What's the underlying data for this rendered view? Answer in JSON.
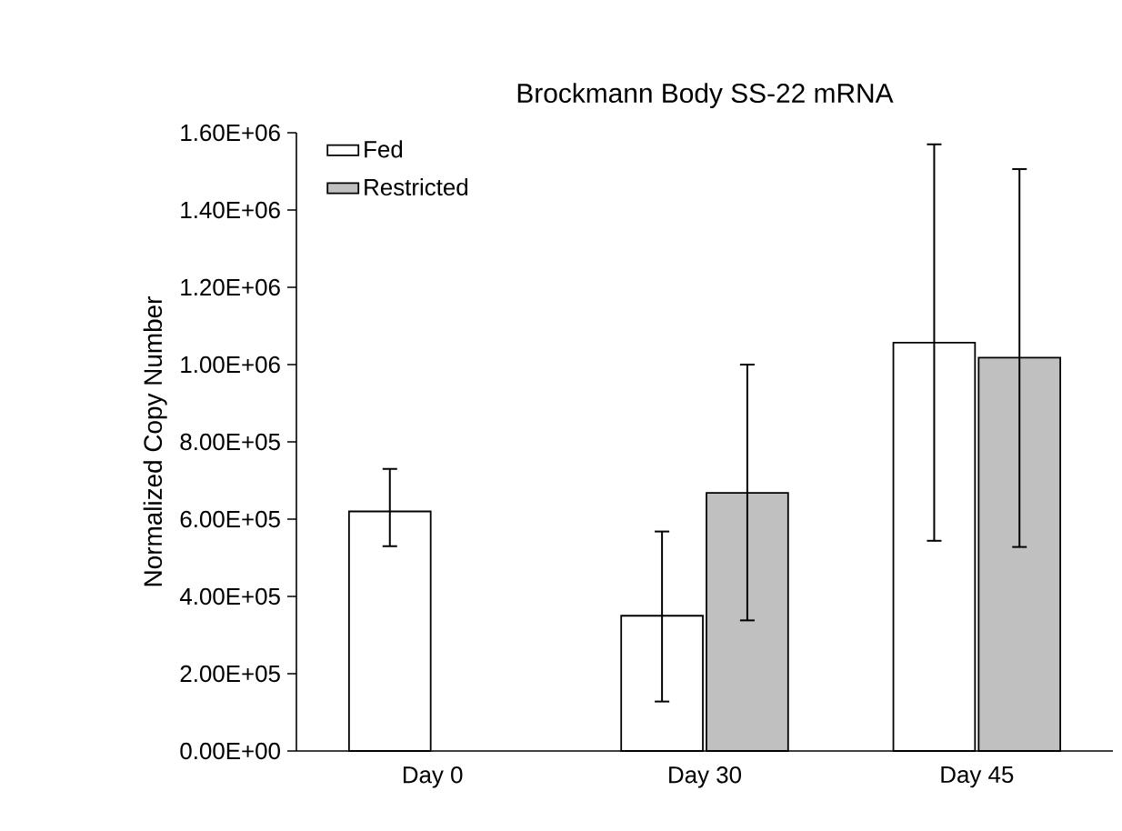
{
  "chart_data": {
    "type": "bar",
    "title": "Brockmann Body SS-22 mRNA",
    "ylabel": "Normalized Copy Number",
    "categories": [
      "Day 0",
      "Day 30",
      "Day 45"
    ],
    "series": [
      {
        "name": "Fed",
        "color": "#ffffff",
        "values": [
          620000,
          350000,
          1057000
        ],
        "errors": [
          [
            530000,
            730000
          ],
          [
            128000,
            568000
          ],
          [
            544000,
            1570000
          ]
        ]
      },
      {
        "name": "Restricted",
        "color": "#c0c0c0",
        "values": [
          null,
          668000,
          1018000
        ],
        "errors": [
          null,
          [
            338000,
            1000000
          ],
          [
            528000,
            1506000
          ]
        ]
      }
    ],
    "ylim": [
      0,
      1600000
    ],
    "yticks": [
      {
        "value": 0,
        "label": "0.00E+00"
      },
      {
        "value": 200000,
        "label": "2.00E+05"
      },
      {
        "value": 400000,
        "label": "4.00E+05"
      },
      {
        "value": 600000,
        "label": "6.00E+05"
      },
      {
        "value": 800000,
        "label": "8.00E+05"
      },
      {
        "value": 1000000,
        "label": "1.00E+06"
      },
      {
        "value": 1200000,
        "label": "1.20E+06"
      },
      {
        "value": 1400000,
        "label": "1.40E+06"
      },
      {
        "value": 1600000,
        "label": "1.60E+06"
      }
    ],
    "legend": "top left"
  }
}
